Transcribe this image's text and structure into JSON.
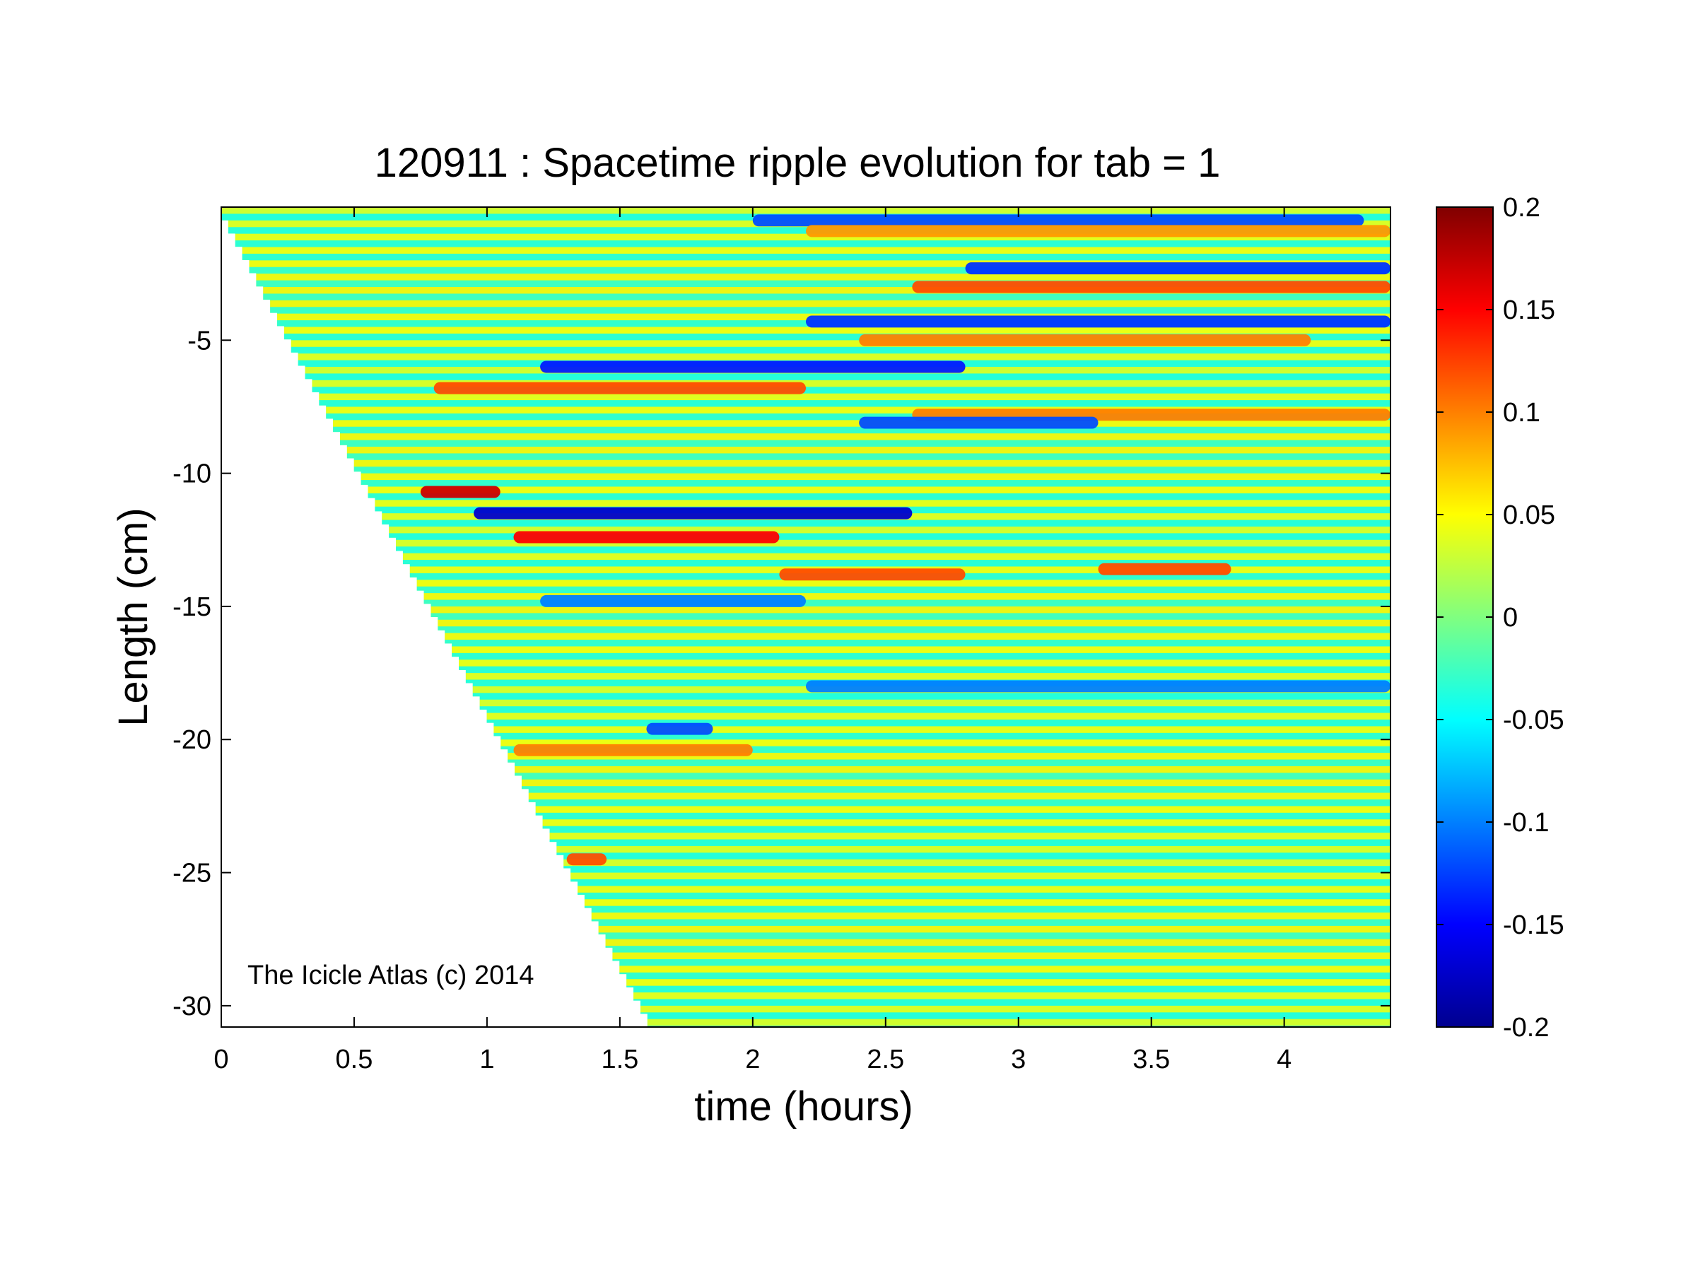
{
  "chart_data": {
    "type": "heatmap",
    "title": "120911 : Spacetime ripple evolution for tab = 1",
    "xlabel": "time (hours)",
    "ylabel": "Length (cm)",
    "xlim": [
      0,
      4.4
    ],
    "ylim": [
      -30.8,
      0.0
    ],
    "xticks": [
      0,
      0.5,
      1,
      1.5,
      2,
      2.5,
      3,
      3.5,
      4
    ],
    "xtick_labels": [
      "0",
      "0.5",
      "1",
      "1.5",
      "2",
      "2.5",
      "3",
      "3.5",
      "4"
    ],
    "yticks": [
      -5,
      -10,
      -15,
      -20,
      -25,
      -30
    ],
    "ytick_labels": [
      "-5",
      "-10",
      "-15",
      "-20",
      "-25",
      "-30"
    ],
    "colormap": "jet",
    "clim": [
      -0.2,
      0.2
    ],
    "colorbar_ticks": [
      0.2,
      0.15,
      0.1,
      0.05,
      0,
      -0.05,
      -0.1,
      -0.15,
      -0.2
    ],
    "colorbar_tick_labels": [
      "0.2",
      "0.15",
      "0.1",
      "0.05",
      "0",
      "-0.05",
      "-0.1",
      "-0.15",
      "-0.2"
    ],
    "colorbar_position": "right",
    "grid": false,
    "data_onset": {
      "description_free": true,
      "points": [
        [
          0.0,
          0.0
        ],
        [
          1.63,
          -30.8
        ]
      ]
    },
    "row_spacing_cm": 0.5,
    "notable_features": [
      {
        "y": -0.5,
        "t_start": 2.0,
        "t_end": 4.3,
        "value": -0.12
      },
      {
        "y": -0.9,
        "t_start": 2.2,
        "t_end": 4.4,
        "value": 0.09
      },
      {
        "y": -2.3,
        "t_start": 2.8,
        "t_end": 4.4,
        "value": -0.13
      },
      {
        "y": -3.0,
        "t_start": 2.6,
        "t_end": 4.4,
        "value": 0.12
      },
      {
        "y": -4.3,
        "t_start": 2.2,
        "t_end": 4.4,
        "value": -0.13
      },
      {
        "y": -5.0,
        "t_start": 2.4,
        "t_end": 4.1,
        "value": 0.1
      },
      {
        "y": -6.0,
        "t_start": 1.2,
        "t_end": 2.8,
        "value": -0.14
      },
      {
        "y": -6.8,
        "t_start": 0.8,
        "t_end": 2.2,
        "value": 0.12
      },
      {
        "y": -7.8,
        "t_start": 2.6,
        "t_end": 4.4,
        "value": 0.1
      },
      {
        "y": -8.1,
        "t_start": 2.4,
        "t_end": 3.3,
        "value": -0.12
      },
      {
        "y": -10.7,
        "t_start": 0.75,
        "t_end": 1.05,
        "value": 0.17
      },
      {
        "y": -11.5,
        "t_start": 0.95,
        "t_end": 2.6,
        "value": -0.17
      },
      {
        "y": -12.4,
        "t_start": 1.1,
        "t_end": 2.1,
        "value": 0.15
      },
      {
        "y": -13.8,
        "t_start": 2.1,
        "t_end": 2.8,
        "value": 0.12
      },
      {
        "y": -13.6,
        "t_start": 3.3,
        "t_end": 3.8,
        "value": 0.12
      },
      {
        "y": -14.8,
        "t_start": 1.2,
        "t_end": 2.2,
        "value": -0.1
      },
      {
        "y": -18.0,
        "t_start": 2.2,
        "t_end": 4.4,
        "value": -0.1
      },
      {
        "y": -19.6,
        "t_start": 1.6,
        "t_end": 1.85,
        "value": -0.12
      },
      {
        "y": -20.4,
        "t_start": 1.1,
        "t_end": 2.0,
        "value": 0.1
      },
      {
        "y": -24.5,
        "t_start": 1.3,
        "t_end": 1.45,
        "value": 0.12
      }
    ]
  },
  "annotation": "The Icicle Atlas (c) 2014"
}
